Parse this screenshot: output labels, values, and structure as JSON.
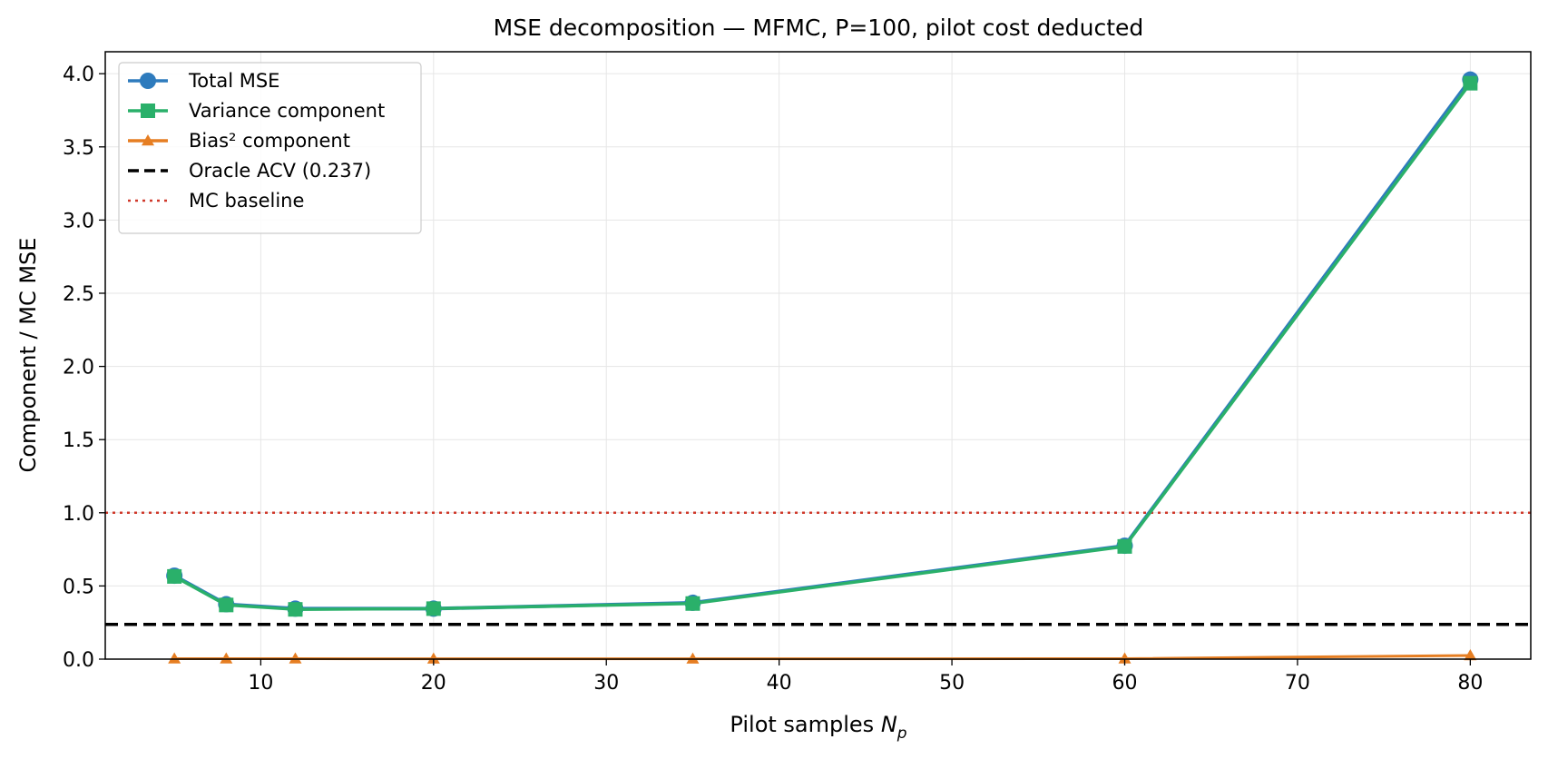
{
  "chart_data": {
    "type": "line",
    "title": "MSE decomposition — MFMC, P=100, pilot cost deducted",
    "xlabel_main": "Pilot samples ",
    "xlabel_symbol": "N",
    "xlabel_subscript": "p",
    "ylabel": "Component / MC MSE",
    "xlim": [
      1,
      83.5
    ],
    "ylim": [
      0,
      4.15
    ],
    "xticks": [
      10,
      20,
      30,
      40,
      50,
      60,
      70,
      80
    ],
    "yticks": [
      0.0,
      0.5,
      1.0,
      1.5,
      2.0,
      2.5,
      3.0,
      3.5,
      4.0
    ],
    "ytick_labels": [
      "0.0",
      "0.5",
      "1.0",
      "1.5",
      "2.0",
      "2.5",
      "3.0",
      "3.5",
      "4.0"
    ],
    "xtick_labels": [
      "10",
      "20",
      "30",
      "40",
      "50",
      "60",
      "70",
      "80"
    ],
    "grid": true,
    "legend_position": "top-left",
    "x": [
      5,
      8,
      12,
      20,
      35,
      60,
      80
    ],
    "series": [
      {
        "name": "Total MSE",
        "marker": "circle",
        "color": "#2e7bbd",
        "values": [
          0.57,
          0.375,
          0.345,
          0.345,
          0.385,
          0.775,
          3.96
        ]
      },
      {
        "name": "Variance component",
        "marker": "square",
        "color": "#2ab06a",
        "values": [
          0.565,
          0.37,
          0.34,
          0.345,
          0.38,
          0.77,
          3.935
        ]
      },
      {
        "name": "Bias² component",
        "marker": "triangle",
        "color": "#e67e22",
        "values": [
          0.003,
          0.003,
          0.003,
          0.002,
          0.002,
          0.003,
          0.025
        ]
      }
    ],
    "reference_lines": [
      {
        "name": "Oracle ACV (0.237)",
        "y": 0.237,
        "style": "dashed",
        "color": "#000000"
      },
      {
        "name": "MC baseline",
        "y": 1.0,
        "style": "dotted",
        "color": "#d0392b"
      }
    ]
  }
}
